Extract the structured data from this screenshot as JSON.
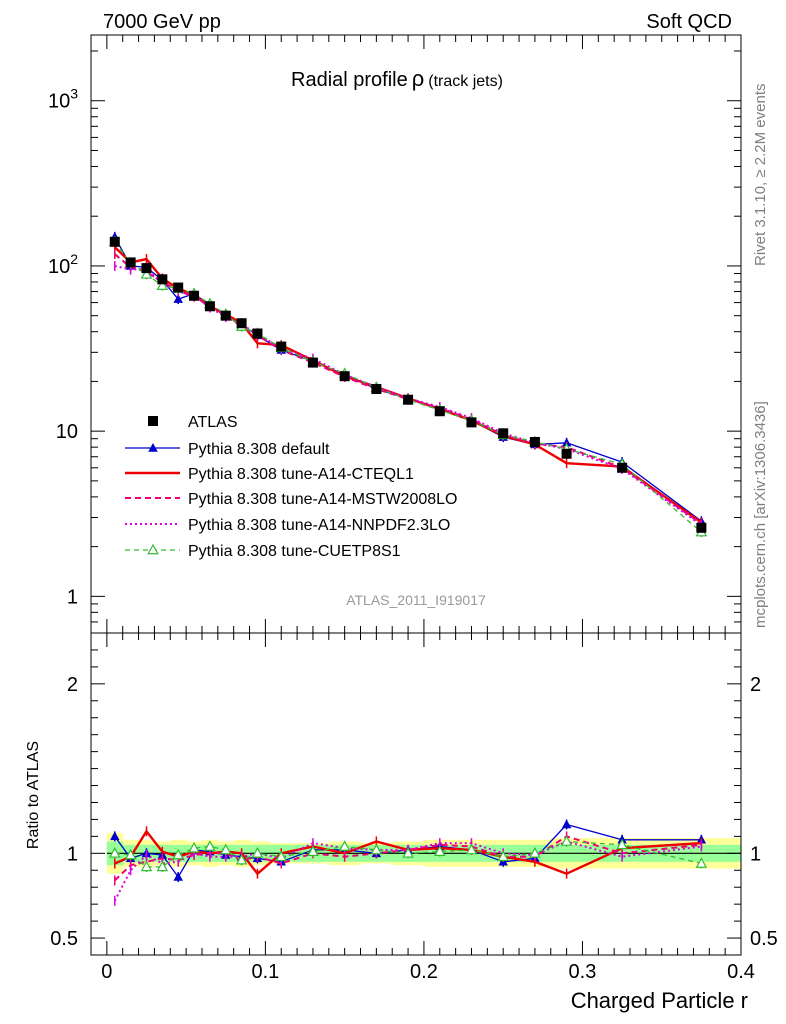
{
  "header": {
    "left": "7000 GeV pp",
    "right": "Soft QCD"
  },
  "side_labels": {
    "rivet": "Rivet 3.1.10, ≥ 2.2M events",
    "mcplots": "mcplots.cern.ch [arXiv:1306.3436]"
  },
  "colors": {
    "atlas": "#000000",
    "default": "#0000cc",
    "cteql1": "#ee0000",
    "mstw": "#ee0077",
    "nnpdf": "#dd00dd",
    "cuetp8s1": "#33bb33",
    "band_inner": "#99ff99",
    "band_outer": "#ffff99"
  },
  "chart_data": [
    {
      "type": "line",
      "title": "Radial profile",
      "title_symbol": "ρ",
      "title_suffix": "(track jets)",
      "analysis_id": "ATLAS_2011_I919017",
      "yscale": "log",
      "xlim": [
        -0.01,
        0.4
      ],
      "ylim": [
        0.6,
        2500
      ],
      "ytick_labels": [
        {
          "value": 1,
          "base": "1",
          "exp": ""
        },
        {
          "value": 10,
          "base": "10",
          "exp": ""
        },
        {
          "value": 100,
          "base": "10",
          "exp": "2"
        },
        {
          "value": 1000,
          "base": "10",
          "exp": "3"
        }
      ],
      "legend_position": "lower-left",
      "x": [
        0.005,
        0.015,
        0.025,
        0.035,
        0.045,
        0.055,
        0.065,
        0.075,
        0.085,
        0.095,
        0.11,
        0.13,
        0.15,
        0.17,
        0.19,
        0.21,
        0.23,
        0.25,
        0.27,
        0.29,
        0.325,
        0.375
      ],
      "series": [
        {
          "name": "ATLAS",
          "key": "atlas",
          "style": "data",
          "values": [
            140,
            105,
            97,
            83,
            74,
            66,
            57,
            50,
            45,
            39,
            32.5,
            26,
            21.5,
            18,
            15.5,
            13.2,
            11.3,
            9.7,
            8.6,
            7.3,
            6.0,
            2.6
          ]
        },
        {
          "name": "Pythia 8.308 default",
          "key": "default",
          "style": "solid-triangle",
          "values": [
            150,
            100,
            98,
            82,
            63,
            68,
            58,
            50,
            44,
            38,
            31,
            26.5,
            22,
            18,
            15.7,
            13.6,
            11.6,
            9.2,
            8.3,
            8.5,
            6.5,
            2.85
          ]
        },
        {
          "name": "Pythia 8.308 tune-A14-CTEQL1",
          "key": "cteql1",
          "style": "solid",
          "values": [
            130,
            105,
            110,
            84,
            73,
            67,
            57,
            51,
            45,
            34,
            33.2,
            26.8,
            21.5,
            18.5,
            15.8,
            13.6,
            11.6,
            9.4,
            8.3,
            6.4,
            6.1,
            2.8
          ]
        },
        {
          "name": "Pythia 8.308 tune-A14-MSTW2008LO",
          "key": "mstw",
          "style": "dashed",
          "values": [
            118,
            98,
            92,
            80,
            71,
            65,
            57,
            50,
            43,
            38,
            31,
            26,
            21.3,
            18,
            15.6,
            13.8,
            11.8,
            9.5,
            8.4,
            8.0,
            6.0,
            2.75
          ]
        },
        {
          "name": "Pythia 8.308 tune-A14-NNPDF2.3LO",
          "key": "nnpdf",
          "style": "dotted",
          "values": [
            100,
            95,
            96,
            78,
            70,
            66,
            56,
            49,
            44,
            39,
            31.5,
            27.5,
            22,
            18.5,
            15.8,
            14.0,
            12.0,
            9.7,
            8.5,
            7.8,
            5.9,
            2.7
          ]
        },
        {
          "name": "Pythia 8.308 tune-CUETP8S1",
          "key": "cuetp8s1",
          "style": "dashed-open-triangle",
          "values": [
            140,
            104,
            89,
            76,
            73,
            68,
            59,
            51,
            43,
            39,
            32,
            26.3,
            22.3,
            18.3,
            15.5,
            13.4,
            11.6,
            9.5,
            8.6,
            7.8,
            6.3,
            2.45
          ]
        }
      ]
    },
    {
      "type": "line",
      "ylabel": "Ratio to ATLAS",
      "xlabel": "Charged Particle r",
      "xlim": [
        -0.01,
        0.4
      ],
      "ylim": [
        0.4,
        2.3
      ],
      "ytick_labels": [
        {
          "value": 0.5,
          "label": "0.5"
        },
        {
          "value": 1,
          "label": "1"
        },
        {
          "value": 2,
          "label": "2"
        }
      ],
      "xtick_labels": [
        {
          "value": 0,
          "label": "0"
        },
        {
          "value": 0.1,
          "label": "0.1"
        },
        {
          "value": 0.2,
          "label": "0.2"
        },
        {
          "value": 0.3,
          "label": "0.3"
        },
        {
          "value": 0.4,
          "label": "0.4"
        }
      ],
      "reference": 1,
      "band_inner_halfwidth": [
        0.07,
        0.05,
        0.05,
        0.05,
        0.05,
        0.05,
        0.05,
        0.05,
        0.05,
        0.05,
        0.05,
        0.05,
        0.05,
        0.05,
        0.05,
        0.05,
        0.05,
        0.05,
        0.05,
        0.05,
        0.05,
        0.05
      ],
      "band_outer_halfwidth": [
        0.12,
        0.08,
        0.08,
        0.07,
        0.08,
        0.07,
        0.08,
        0.07,
        0.08,
        0.07,
        0.06,
        0.06,
        0.07,
        0.06,
        0.07,
        0.08,
        0.08,
        0.08,
        0.08,
        0.09,
        0.09,
        0.09
      ],
      "series": [
        {
          "name": "Pythia 8.308 default",
          "key": "default",
          "style": "solid-triangle",
          "values": [
            1.1,
            0.97,
            1.0,
            0.99,
            0.86,
            1.02,
            1.01,
            0.99,
            0.98,
            0.97,
            0.95,
            1.02,
            1.02,
            1.0,
            1.02,
            1.04,
            1.02,
            0.95,
            0.97,
            1.17,
            1.08,
            1.08
          ]
        },
        {
          "name": "Pythia 8.308 tune-A14-CTEQL1",
          "key": "cteql1",
          "style": "solid",
          "values": [
            0.94,
            0.98,
            1.13,
            1.01,
            0.98,
            1.01,
            1.0,
            1.01,
            1.0,
            0.88,
            1.0,
            1.04,
            1.0,
            1.07,
            1.02,
            1.03,
            1.02,
            0.98,
            0.95,
            0.88,
            1.03,
            1.06
          ]
        },
        {
          "name": "Pythia 8.308 tune-A14-MSTW2008LO",
          "key": "mstw",
          "style": "dashed",
          "values": [
            0.84,
            0.93,
            0.95,
            0.97,
            0.96,
            0.99,
            1.0,
            1.0,
            0.96,
            0.98,
            0.94,
            1.0,
            0.98,
            1.0,
            1.02,
            1.05,
            1.04,
            0.98,
            0.98,
            1.1,
            1.0,
            1.05
          ]
        },
        {
          "name": "Pythia 8.308 tune-A14-NNPDF2.3LO",
          "key": "nnpdf",
          "style": "dotted",
          "values": [
            0.72,
            0.9,
            0.99,
            0.94,
            0.95,
            1.0,
            0.98,
            0.98,
            0.98,
            1.0,
            0.97,
            1.06,
            1.03,
            1.02,
            1.02,
            1.06,
            1.06,
            1.0,
            0.99,
            1.07,
            0.98,
            1.04
          ]
        },
        {
          "name": "Pythia 8.308 tune-CUETP8S1",
          "key": "cuetp8s1",
          "style": "dashed-open-triangle",
          "values": [
            1.0,
            0.99,
            0.92,
            0.92,
            0.99,
            1.03,
            1.04,
            1.02,
            0.96,
            1.0,
            0.98,
            1.01,
            1.04,
            1.02,
            1.0,
            1.01,
            1.02,
            0.98,
            1.0,
            1.07,
            1.05,
            0.94
          ]
        }
      ]
    }
  ]
}
